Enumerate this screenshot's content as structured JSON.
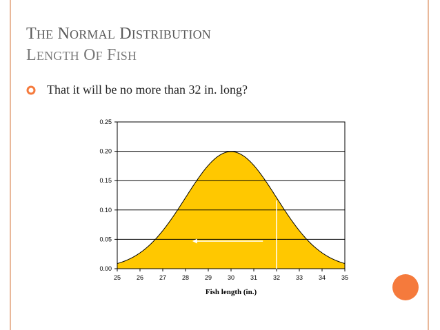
{
  "slide": {
    "title_line1": "The Normal Distribution",
    "title_line2": "Length of Fish",
    "bullet_text": "That it will be no more than 32 in. long?"
  },
  "colors": {
    "accent_orange": "#f57a3c",
    "frame": "#e9b89a",
    "fill": "#ffc800",
    "title_gray": "#5a5a5a"
  },
  "chart_data": {
    "type": "area",
    "title": "",
    "xlabel": "Fish length (in.)",
    "ylabel": "",
    "xlim": [
      25,
      35
    ],
    "ylim": [
      0,
      0.25
    ],
    "x_ticks": [
      25,
      26,
      27,
      28,
      29,
      30,
      31,
      32,
      33,
      34,
      35
    ],
    "y_ticks": [
      "0.00",
      "0.05",
      "0.10",
      "0.15",
      "0.20",
      "0.25"
    ],
    "grid": "horizontal",
    "distribution": {
      "mean": 30,
      "sd": 2
    },
    "marker_x": 32,
    "arrow": {
      "from_x": 31.4,
      "to_x": 28.3,
      "y": 0.047,
      "direction": "left"
    }
  }
}
